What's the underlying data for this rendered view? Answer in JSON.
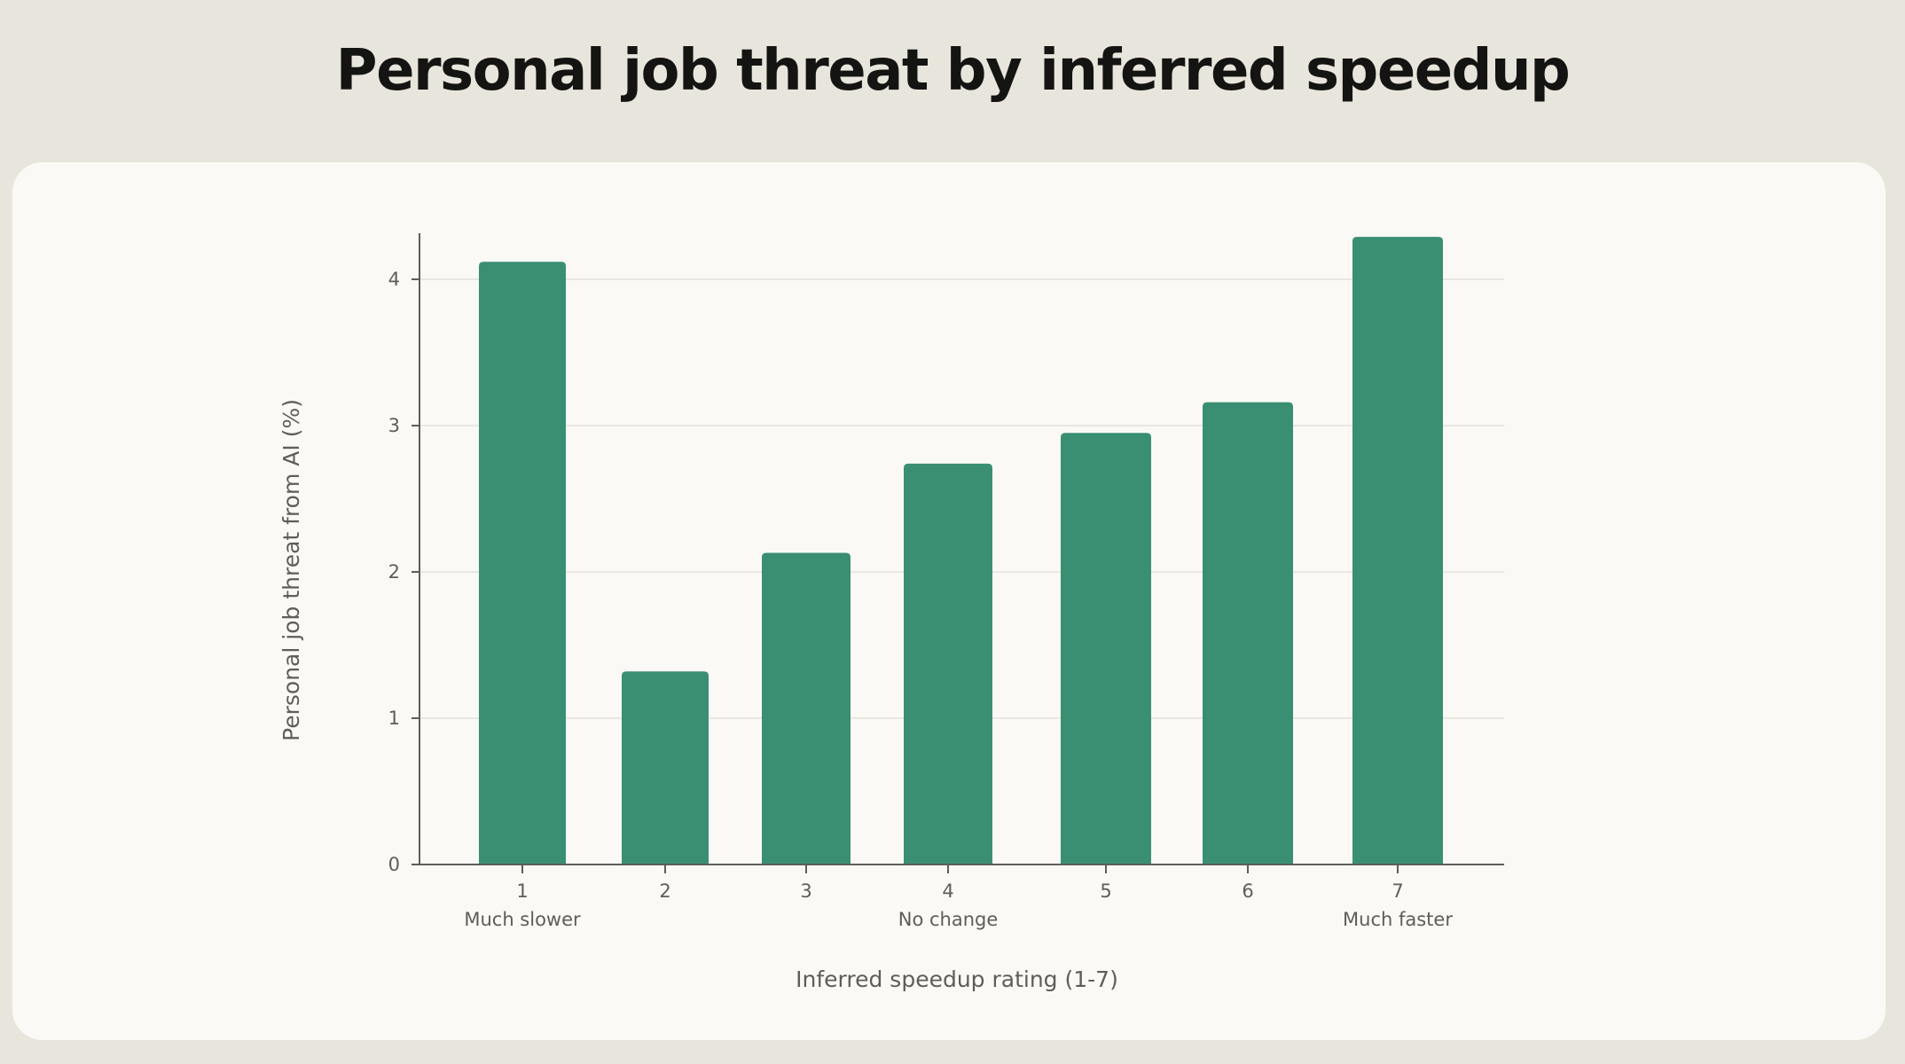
{
  "header": {
    "title": "Personal job threat by inferred speedup"
  },
  "chart_data": {
    "type": "bar",
    "title": "Personal job threat by inferred speedup",
    "xlabel": "Inferred speedup rating (1-7)",
    "ylabel": "Personal job threat from AI (%)",
    "categories": [
      "1",
      "2",
      "3",
      "4",
      "5",
      "6",
      "7"
    ],
    "category_sublabels": [
      "Much slower",
      "",
      "",
      "No change",
      "",
      "",
      "Much faster"
    ],
    "values": [
      4.12,
      1.32,
      2.13,
      2.74,
      2.95,
      3.16,
      4.29
    ],
    "yticks": [
      0,
      1,
      2,
      3,
      4
    ],
    "ylim": [
      0,
      4.3
    ],
    "grid": "horizontal",
    "bar_color": "#3a8f73",
    "colors": {
      "background": "#e8e6dc",
      "panel": "#faf9f5",
      "axis": "#5e5d59",
      "grid": "#e3e1d9"
    }
  }
}
